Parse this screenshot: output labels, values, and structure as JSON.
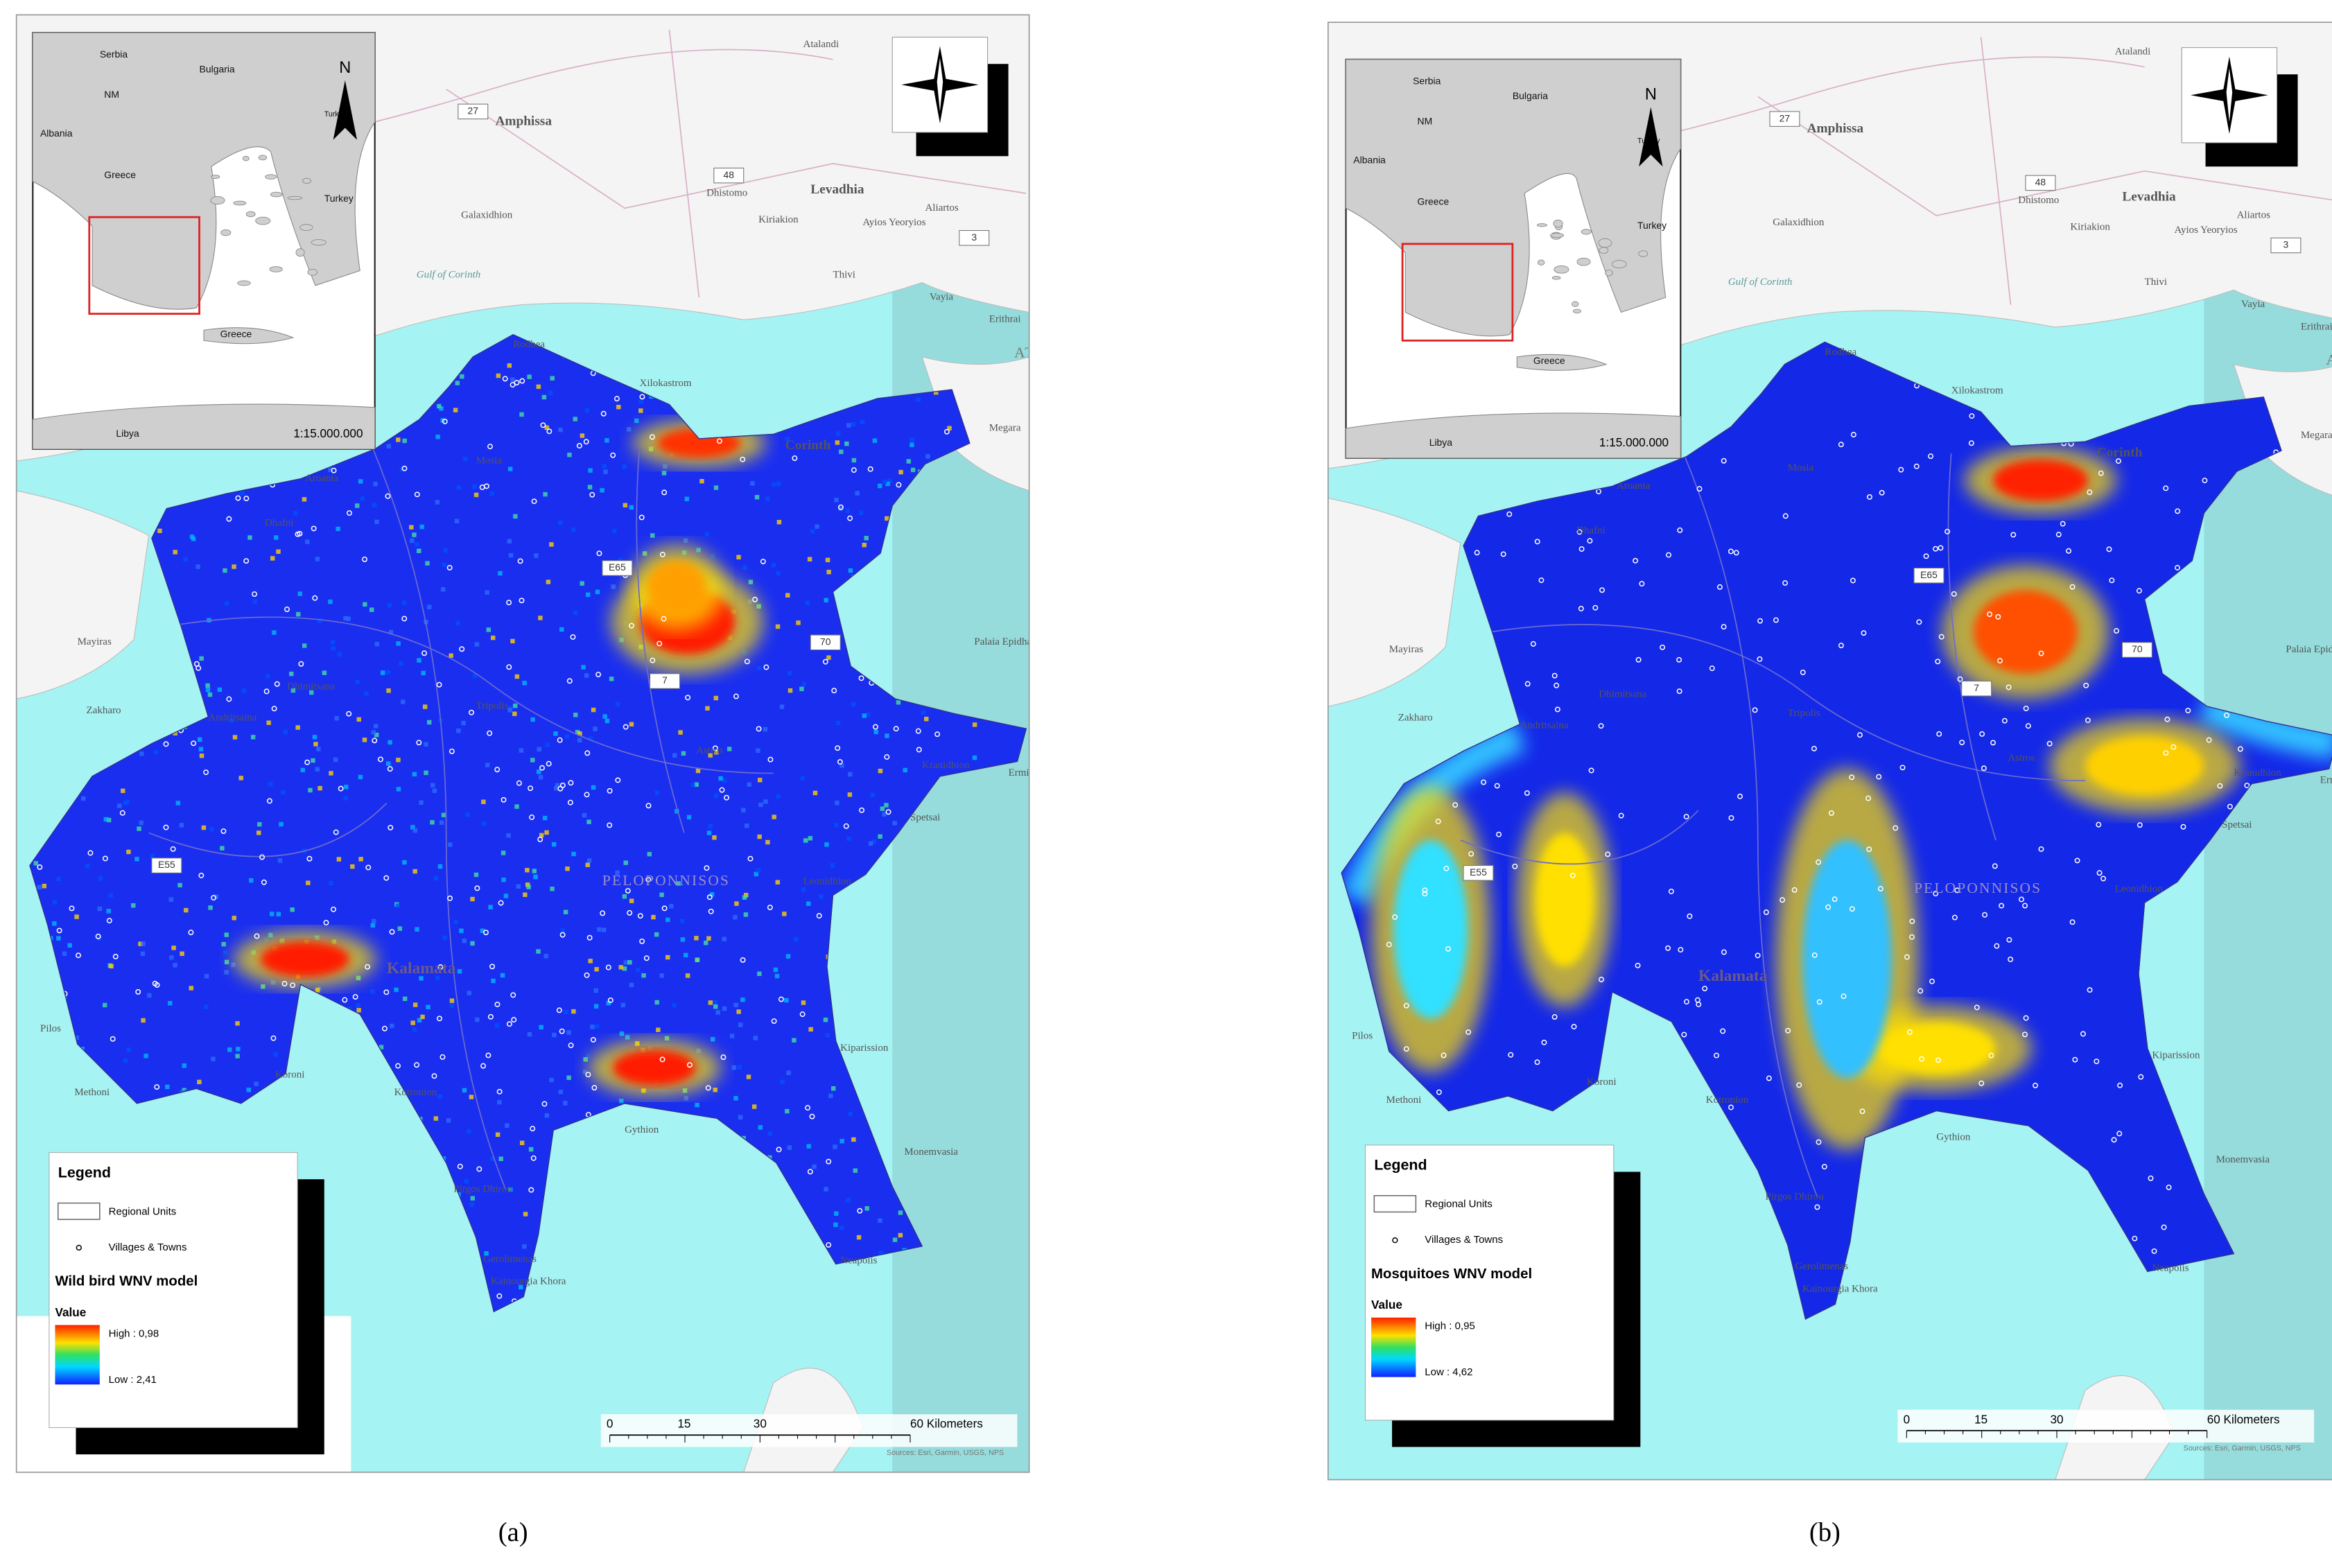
{
  "map_labels": [
    "Amphissa",
    "Levadhia",
    "Aliartos",
    "Thivi",
    "Vayia",
    "Gulf of Corinth",
    "Xilokastrom",
    "Corinth",
    "Megara",
    "Rodhea",
    "Mosia",
    "Aroania",
    "Dhafni",
    "E65",
    "70",
    "7",
    "Mayiras",
    "Zakharo",
    "Andritsaina",
    "E55",
    "Dhimitsana",
    "Tripolis",
    "Astros",
    "PELOPONNISOS",
    "Kalamata",
    "Koroni",
    "Methoni",
    "Pilos",
    "Kotronion",
    "Gythion",
    "Monemvasia",
    "Neapolis",
    "Kiparission",
    "Leonidhion",
    "Kranidhion",
    "Spetsai",
    "Ermioni",
    "Palaia Epidhavros",
    "Kiriakion",
    "Ayios Yeoryios",
    "ATTIKI",
    "Erithrai",
    "Dhistomo",
    "Galaxidhion",
    "Atalandi",
    "Pirgos Dhirou",
    "Gerolimenas",
    "Kainourgia Khora",
    "27",
    "48",
    "3"
  ],
  "panels": [
    {
      "caption": "(a)",
      "inset": {
        "labels": [
          "Serbia",
          "Bulgaria",
          "NM",
          "Albania",
          "Greece",
          "Turkey",
          "Turkey",
          "Greece",
          "Libya"
        ],
        "north": "N",
        "scale": "1:15.000.000"
      },
      "legend": {
        "title": "Legend",
        "items": [
          "Regional Units",
          "Villages & Towns"
        ],
        "model": "Wild bird WNV model",
        "value": "Value",
        "high": "High : 0,98",
        "low": "Low : 2,41"
      },
      "scalebar": [
        "0",
        "15",
        "30",
        "60 Kilometers"
      ],
      "source": "Sources: Esri, Garmin, USGS, NPS"
    },
    {
      "caption": "(b)",
      "inset": {
        "labels": [
          "Serbia",
          "Bulgaria",
          "NM",
          "Albania",
          "Greece",
          "Turkey",
          "Turkey",
          "Greece",
          "Libya"
        ],
        "north": "N",
        "scale": "1:15.000.000"
      },
      "legend": {
        "title": "Legend",
        "items": [
          "Regional Units",
          "Villages & Towns"
        ],
        "model": "Mosquitoes WNV model",
        "value": "Value",
        "high": "High : 0,95",
        "low": "Low : 4,62"
      },
      "scalebar": [
        "0",
        "15",
        "30",
        "60 Kilometers"
      ],
      "source": "Sources: Esri, Garmin, USGS, NPS"
    }
  ]
}
